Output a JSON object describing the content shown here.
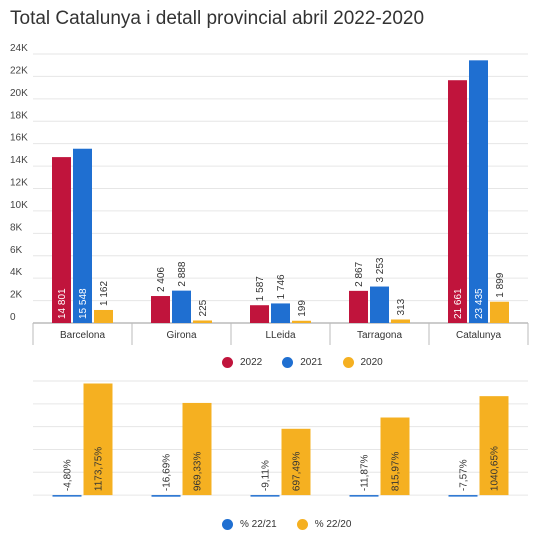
{
  "title": "Total Catalunya i detall provincial abril 2022-2020",
  "colors": {
    "2022": "#c0143c",
    "2021": "#1f6fd1",
    "2020": "#f5b021",
    "pct2221": "#1f6fd1",
    "pct2220": "#f5b021"
  },
  "chart_data": [
    {
      "type": "bar",
      "categories": [
        "Barcelona",
        "Girona",
        "LLeida",
        "Tarragona",
        "Catalunya"
      ],
      "ylim": [
        0,
        24000
      ],
      "yticks": [
        "0",
        "2K",
        "4K",
        "6K",
        "8K",
        "10K",
        "12K",
        "14K",
        "16K",
        "18K",
        "20K",
        "22K",
        "24K"
      ],
      "grid": true,
      "legend": "bottom",
      "series": [
        {
          "name": "2022",
          "values": [
            14801,
            2406,
            1587,
            2867,
            21661
          ],
          "labels": [
            "14 801",
            "2 406",
            "1 587",
            "2 867",
            "21 661"
          ]
        },
        {
          "name": "2021",
          "values": [
            15548,
            2888,
            1746,
            3253,
            23435
          ],
          "labels": [
            "15 548",
            "2 888",
            "1 746",
            "3 253",
            "23 435"
          ]
        },
        {
          "name": "2020",
          "values": [
            1162,
            225,
            199,
            313,
            1899
          ],
          "labels": [
            "1 162",
            "225",
            "199",
            "313",
            "1 899"
          ]
        }
      ]
    },
    {
      "type": "bar",
      "categories": [
        "Barcelona",
        "Girona",
        "LLeida",
        "Tarragona",
        "Catalunya"
      ],
      "ylim": [
        -20,
        1200
      ],
      "grid": true,
      "legend": "bottom",
      "series": [
        {
          "name": "% 22/21",
          "values": [
            -4.8,
            -16.69,
            -9.11,
            -11.87,
            -7.57
          ],
          "labels": [
            "-4,80%",
            "-16,69%",
            "-9,11%",
            "-11,87%",
            "-7,57%"
          ]
        },
        {
          "name": "% 22/20",
          "values": [
            1173.75,
            969.33,
            697.49,
            815.97,
            1040.65
          ],
          "labels": [
            "1173,75%",
            "969,33%",
            "697,49%",
            "815,97%",
            "1040,65%"
          ]
        }
      ]
    }
  ]
}
